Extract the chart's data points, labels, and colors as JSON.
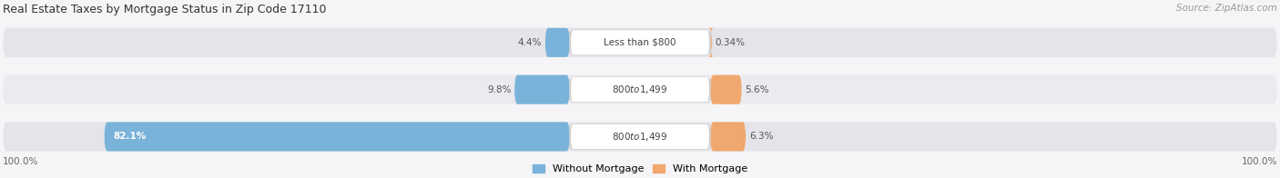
{
  "title": "Real Estate Taxes by Mortgage Status in Zip Code 17110",
  "source": "Source: ZipAtlas.com",
  "rows": [
    {
      "label": "Less than $800",
      "without_mortgage": 4.4,
      "with_mortgage": 0.34
    },
    {
      "label": "$800 to $1,499",
      "without_mortgage": 9.8,
      "with_mortgage": 5.6
    },
    {
      "label": "$800 to $1,499",
      "without_mortgage": 82.1,
      "with_mortgage": 6.3
    }
  ],
  "color_without": "#7ab3d9",
  "color_with": "#f0a86e",
  "color_bg_row": "#e4e4ea",
  "color_bg_row_alt": "#eaeaef",
  "legend_without": "Without Mortgage",
  "legend_with": "With Mortgage",
  "left_label": "100.0%",
  "right_label": "100.0%",
  "label_pill_color": "#ffffff",
  "label_text_color": "#444444",
  "pct_text_color_outside": "#555555",
  "pct_text_color_inside": "#ffffff"
}
